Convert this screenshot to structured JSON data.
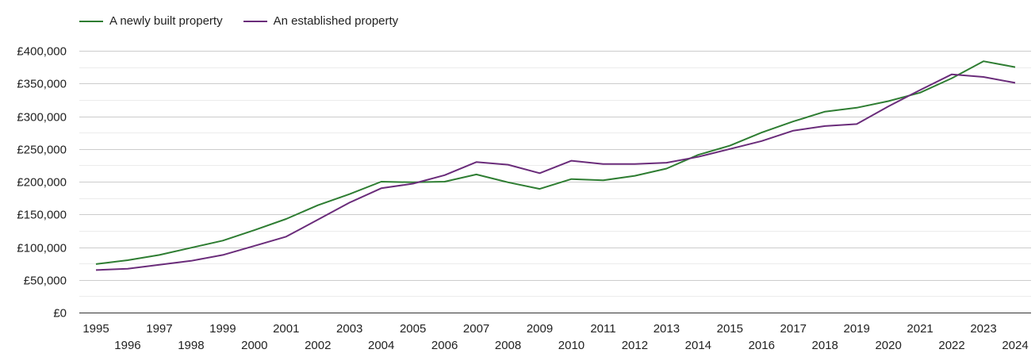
{
  "chart_data": {
    "type": "line",
    "ylim": [
      0,
      400000
    ],
    "y_ticks": [
      "£0",
      "£50,000",
      "£100,000",
      "£150,000",
      "£200,000",
      "£250,000",
      "£300,000",
      "£350,000",
      "£400,000"
    ],
    "y_tick_values": [
      0,
      50000,
      100000,
      150000,
      200000,
      250000,
      300000,
      350000,
      400000
    ],
    "x": [
      "1995",
      "1996",
      "1997",
      "1998",
      "1999",
      "2000",
      "2001",
      "2002",
      "2003",
      "2004",
      "2005",
      "2006",
      "2007",
      "2008",
      "2009",
      "2010",
      "2011",
      "2012",
      "2013",
      "2014",
      "2015",
      "2016",
      "2017",
      "2018",
      "2019",
      "2020",
      "2021",
      "2022",
      "2023",
      "2024"
    ],
    "legend_position": "top-left",
    "grid": true,
    "series": [
      {
        "name": "A newly built property",
        "color": "#2e7d32",
        "values": [
          74000,
          80000,
          88000,
          99000,
          110000,
          126000,
          143000,
          164000,
          181000,
          200000,
          199000,
          200000,
          211000,
          199000,
          189000,
          204000,
          202000,
          209000,
          220000,
          241000,
          255000,
          275000,
          292000,
          307000,
          313000,
          323000,
          336000,
          358000,
          384000,
          375000
        ]
      },
      {
        "name": "An established property",
        "color": "#6a2c7a",
        "values": [
          65000,
          67000,
          73000,
          79000,
          88000,
          102000,
          116000,
          142000,
          168000,
          190000,
          197000,
          210000,
          230000,
          226000,
          213000,
          232000,
          227000,
          227000,
          229000,
          238000,
          250000,
          262000,
          278000,
          285000,
          288000,
          315000,
          340000,
          364000,
          360000,
          351000
        ]
      }
    ]
  }
}
